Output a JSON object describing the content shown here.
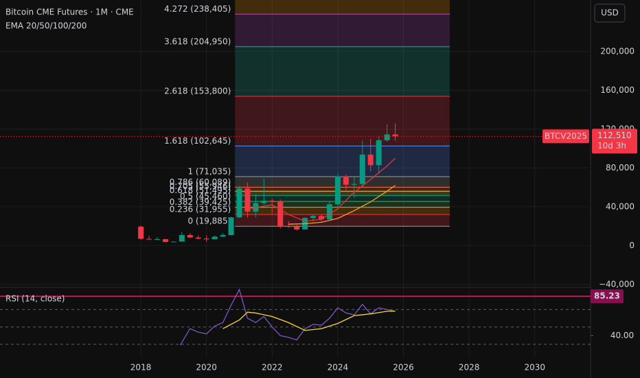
{
  "chart_data": [
    {
      "type": "candlestick",
      "title": "Bitcoin CME Futures · 1M · CME",
      "subtitle": "EMA 20/50/100/200",
      "currency": "USD",
      "symbol": "BTCV2025",
      "countdown": "10d 3h",
      "last_price": {
        "value": 112510,
        "label": "112,510"
      },
      "up_color": "#089981",
      "down_color": "#f23645",
      "xlim": [
        2013.71,
        2031.7
      ],
      "xticks": [
        2018,
        2020,
        2022,
        2024,
        2026,
        2028,
        2030
      ],
      "ylim": [
        -43000,
        253000
      ],
      "yticks": [
        {
          "value": -40000,
          "label": "−40,000"
        },
        0,
        {
          "value": 40000,
          "label": "40,000"
        },
        {
          "value": 80000,
          "label": "80,000"
        },
        {
          "value": 120000,
          "label": "120,000"
        },
        {
          "value": 160000,
          "label": "160,000"
        },
        {
          "value": 200000,
          "label": "200,000"
        }
      ],
      "grid": true,
      "x": [
        2018.0,
        2018.25,
        2018.5,
        2018.75,
        2019.0,
        2019.25,
        2019.5,
        2019.75,
        2020.0,
        2020.25,
        2020.5,
        2020.75,
        2021.0,
        2021.25,
        2021.5,
        2021.75,
        2022.0,
        2022.25,
        2022.5,
        2022.75,
        2023.0,
        2023.25,
        2023.5,
        2023.75,
        2024.0,
        2024.25,
        2024.5,
        2024.75,
        2025.0,
        2025.25,
        2025.5,
        2025.75
      ],
      "open": [
        19500,
        6900,
        6400,
        6600,
        3700,
        4100,
        10800,
        8300,
        7200,
        6400,
        9150,
        10800,
        29000,
        58800,
        35000,
        43800,
        46200,
        45500,
        19900,
        19400,
        16600,
        28500,
        30500,
        27000,
        42500,
        71300,
        62700,
        63500,
        93700,
        82800,
        108500,
        114500
      ],
      "high": [
        20500,
        10000,
        8500,
        6700,
        4200,
        14000,
        12800,
        10500,
        10500,
        10400,
        12500,
        29500,
        61000,
        65000,
        53000,
        69000,
        48200,
        47500,
        25200,
        21500,
        29300,
        31800,
        31800,
        45000,
        74000,
        73000,
        71000,
        108000,
        110000,
        112000,
        125000,
        126000
      ],
      "low": [
        6000,
        6000,
        5800,
        3100,
        3400,
        4100,
        7700,
        6500,
        3800,
        6400,
        9000,
        10500,
        28500,
        28800,
        29000,
        42000,
        33000,
        17600,
        18200,
        15500,
        16500,
        24800,
        24900,
        26800,
        38500,
        57000,
        49000,
        58900,
        76500,
        74000,
        107000,
        108000
      ],
      "close": [
        6900,
        6400,
        6600,
        3700,
        4100,
        10800,
        8300,
        7200,
        6400,
        9150,
        10800,
        29000,
        58800,
        35000,
        43800,
        46200,
        45500,
        19900,
        19400,
        16600,
        28500,
        30500,
        27000,
        42500,
        71300,
        62700,
        63500,
        93700,
        82800,
        108500,
        114500,
        112510
      ],
      "series": [
        {
          "color": "#e53935",
          "x": [
            2021.3,
            2022.0,
            2022.5,
            2023.0,
            2023.5,
            2024.0,
            2024.5,
            2025.0,
            2025.5,
            2025.75
          ],
          "values": [
            38000,
            42000,
            32000,
            25000,
            27000,
            38000,
            55000,
            68000,
            82000,
            90000
          ]
        },
        {
          "color": "#f7a21b",
          "x": [
            2022.5,
            2023.0,
            2023.5,
            2024.0,
            2024.5,
            2025.0,
            2025.5,
            2025.75
          ],
          "values": [
            22000,
            22500,
            24000,
            28000,
            36000,
            45000,
            56000,
            62000
          ]
        }
      ],
      "fib_x": [
        2020.87,
        2027.41
      ],
      "fib_levels": [
        {
          "label": "0 (19,885)",
          "value": 19885,
          "color": "#9e9e9e"
        },
        {
          "label": "0.236 (31,955)",
          "value": 31955,
          "color": "#f23645"
        },
        {
          "label": "0.382 (39,425)",
          "value": 39425,
          "color": "#ff9800"
        },
        {
          "label": "0.5 (45,460)",
          "value": 45460,
          "color": "#4caf50"
        },
        {
          "label": "0.618 (51,495)",
          "value": 51495,
          "color": "#089981"
        },
        {
          "label": "0.705 (55,946)",
          "value": 55946,
          "color": "#f7c948"
        },
        {
          "label": "0.786 (60,089)",
          "value": 60089,
          "color": "#ff7043"
        },
        {
          "label": "1 (71,035)",
          "value": 71035,
          "color": "#9e9e9e"
        },
        {
          "label": "1.618 (102,645)",
          "value": 102645,
          "color": "#5b8ff9"
        },
        {
          "label": "2.618 (153,800)",
          "value": 153800,
          "color": "#f23645"
        },
        {
          "label": "3.618 (204,950)",
          "value": 204950,
          "color": "#22ab94"
        },
        {
          "label": "4.272 (238,405)",
          "value": 238405,
          "color": "#ab47bc"
        }
      ]
    },
    {
      "type": "line",
      "title": "RSI (14, close)",
      "xlim": [
        2013.71,
        2031.7
      ],
      "ylim": [
        15,
        94
      ],
      "yticks": [
        {
          "value": 40,
          "label": "40.00"
        }
      ],
      "band": {
        "value": 85.23,
        "label": "85.23"
      },
      "levels": [
        70,
        50,
        30
      ],
      "series": [
        {
          "color": "#7e57c2",
          "x": [
            2019.2,
            2019.5,
            2019.75,
            2020.0,
            2020.25,
            2020.5,
            2020.75,
            2021.0,
            2021.25,
            2021.5,
            2021.75,
            2022.0,
            2022.25,
            2022.5,
            2022.75,
            2023.0,
            2023.25,
            2023.5,
            2023.75,
            2024.0,
            2024.25,
            2024.5,
            2024.75,
            2025.0,
            2025.25,
            2025.5,
            2025.75
          ],
          "values": [
            29,
            48,
            44,
            42,
            51,
            55,
            75,
            93,
            60,
            55,
            62,
            50,
            40,
            38,
            35,
            48,
            53,
            52,
            60,
            72,
            66,
            64,
            76,
            65,
            72,
            70,
            68
          ]
        },
        {
          "color": "#fdd835",
          "x": [
            2020.5,
            2021.0,
            2021.25,
            2021.5,
            2022.0,
            2022.5,
            2023.0,
            2023.5,
            2024.0,
            2024.5,
            2025.0,
            2025.5,
            2025.75
          ],
          "values": [
            48,
            58,
            67,
            66,
            62,
            55,
            46,
            48,
            54,
            63,
            65,
            68,
            68
          ]
        }
      ]
    }
  ]
}
